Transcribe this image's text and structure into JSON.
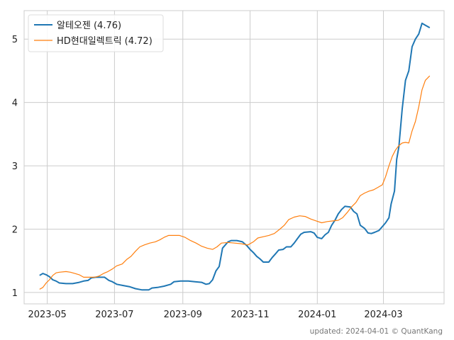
{
  "chart_data": {
    "type": "line",
    "x_type": "date",
    "xlim": [
      "2023-04-10",
      "2024-04-25"
    ],
    "ylim": [
      0.82,
      5.45
    ],
    "grid": true,
    "legend_position": "top-left",
    "x_ticks": [
      {
        "value": "2023-05-01",
        "label": "2023-05"
      },
      {
        "value": "2023-07-01",
        "label": "2023-07"
      },
      {
        "value": "2023-09-01",
        "label": "2023-09"
      },
      {
        "value": "2023-11-01",
        "label": "2023-11"
      },
      {
        "value": "2024-01-01",
        "label": "2024-01"
      },
      {
        "value": "2024-03-01",
        "label": "2024-03"
      }
    ],
    "y_ticks": [
      1,
      2,
      3,
      4,
      5
    ],
    "series": [
      {
        "name": "알테오젠 (4.76)",
        "color": "#1f77b4",
        "points": [
          [
            "2023-04-24",
            1.27
          ],
          [
            "2023-04-27",
            1.3
          ],
          [
            "2023-04-30",
            1.28
          ],
          [
            "2023-05-03",
            1.25
          ],
          [
            "2023-05-06",
            1.2
          ],
          [
            "2023-05-09",
            1.18
          ],
          [
            "2023-05-12",
            1.15
          ],
          [
            "2023-05-18",
            1.14
          ],
          [
            "2023-05-24",
            1.14
          ],
          [
            "2023-05-30",
            1.16
          ],
          [
            "2023-06-03",
            1.18
          ],
          [
            "2023-06-07",
            1.19
          ],
          [
            "2023-06-10",
            1.23
          ],
          [
            "2023-06-14",
            1.24
          ],
          [
            "2023-06-19",
            1.24
          ],
          [
            "2023-06-22",
            1.24
          ],
          [
            "2023-06-26",
            1.19
          ],
          [
            "2023-06-29",
            1.17
          ],
          [
            "2023-07-03",
            1.13
          ],
          [
            "2023-07-09",
            1.11
          ],
          [
            "2023-07-15",
            1.09
          ],
          [
            "2023-07-20",
            1.06
          ],
          [
            "2023-07-26",
            1.04
          ],
          [
            "2023-08-01",
            1.04
          ],
          [
            "2023-08-04",
            1.07
          ],
          [
            "2023-08-09",
            1.08
          ],
          [
            "2023-08-15",
            1.1
          ],
          [
            "2023-08-21",
            1.13
          ],
          [
            "2023-08-24",
            1.17
          ],
          [
            "2023-08-30",
            1.18
          ],
          [
            "2023-09-06",
            1.18
          ],
          [
            "2023-09-12",
            1.17
          ],
          [
            "2023-09-18",
            1.16
          ],
          [
            "2023-09-22",
            1.13
          ],
          [
            "2023-09-25",
            1.14
          ],
          [
            "2023-09-28",
            1.2
          ],
          [
            "2023-10-01",
            1.34
          ],
          [
            "2023-10-04",
            1.41
          ],
          [
            "2023-10-07",
            1.7
          ],
          [
            "2023-10-12",
            1.8
          ],
          [
            "2023-10-15",
            1.82
          ],
          [
            "2023-10-20",
            1.82
          ],
          [
            "2023-10-25",
            1.8
          ],
          [
            "2023-10-29",
            1.74
          ],
          [
            "2023-11-01",
            1.68
          ],
          [
            "2023-11-04",
            1.63
          ],
          [
            "2023-11-07",
            1.57
          ],
          [
            "2023-11-10",
            1.53
          ],
          [
            "2023-11-13",
            1.48
          ],
          [
            "2023-11-18",
            1.48
          ],
          [
            "2023-11-21",
            1.55
          ],
          [
            "2023-11-24",
            1.61
          ],
          [
            "2023-11-27",
            1.67
          ],
          [
            "2023-12-01",
            1.68
          ],
          [
            "2023-12-04",
            1.72
          ],
          [
            "2023-12-08",
            1.72
          ],
          [
            "2023-12-11",
            1.78
          ],
          [
            "2023-12-14",
            1.85
          ],
          [
            "2023-12-17",
            1.92
          ],
          [
            "2023-12-20",
            1.95
          ],
          [
            "2023-12-26",
            1.96
          ],
          [
            "2023-12-29",
            1.94
          ],
          [
            "2024-01-01",
            1.87
          ],
          [
            "2024-01-05",
            1.85
          ],
          [
            "2024-01-08",
            1.91
          ],
          [
            "2024-01-11",
            1.95
          ],
          [
            "2024-01-14",
            2.06
          ],
          [
            "2024-01-17",
            2.14
          ],
          [
            "2024-01-20",
            2.24
          ],
          [
            "2024-01-23",
            2.31
          ],
          [
            "2024-01-26",
            2.36
          ],
          [
            "2024-01-31",
            2.35
          ],
          [
            "2024-02-03",
            2.28
          ],
          [
            "2024-02-06",
            2.24
          ],
          [
            "2024-02-09",
            2.06
          ],
          [
            "2024-02-13",
            2.01
          ],
          [
            "2024-02-16",
            1.94
          ],
          [
            "2024-02-19",
            1.93
          ],
          [
            "2024-02-22",
            1.95
          ],
          [
            "2024-02-26",
            1.98
          ],
          [
            "2024-02-29",
            2.04
          ],
          [
            "2024-03-03",
            2.1
          ],
          [
            "2024-03-06",
            2.18
          ],
          [
            "2024-03-08",
            2.4
          ],
          [
            "2024-03-11",
            2.6
          ],
          [
            "2024-03-13",
            3.1
          ],
          [
            "2024-03-15",
            3.3
          ],
          [
            "2024-03-18",
            3.9
          ],
          [
            "2024-03-21",
            4.35
          ],
          [
            "2024-03-24",
            4.5
          ],
          [
            "2024-03-27",
            4.88
          ],
          [
            "2024-03-30",
            5.0
          ],
          [
            "2024-04-02",
            5.08
          ],
          [
            "2024-04-05",
            5.25
          ],
          [
            "2024-04-08",
            5.22
          ],
          [
            "2024-04-12",
            5.18
          ]
        ]
      },
      {
        "name": "HD현대일렉트릭 (4.72)",
        "color": "#ff7f0e",
        "points": [
          [
            "2023-04-24",
            1.05
          ],
          [
            "2023-04-27",
            1.08
          ],
          [
            "2023-04-30",
            1.15
          ],
          [
            "2023-05-03",
            1.2
          ],
          [
            "2023-05-06",
            1.27
          ],
          [
            "2023-05-09",
            1.31
          ],
          [
            "2023-05-12",
            1.32
          ],
          [
            "2023-05-18",
            1.33
          ],
          [
            "2023-05-22",
            1.32
          ],
          [
            "2023-05-26",
            1.3
          ],
          [
            "2023-05-30",
            1.28
          ],
          [
            "2023-06-03",
            1.24
          ],
          [
            "2023-06-08",
            1.24
          ],
          [
            "2023-06-13",
            1.24
          ],
          [
            "2023-06-17",
            1.26
          ],
          [
            "2023-06-21",
            1.3
          ],
          [
            "2023-06-25",
            1.33
          ],
          [
            "2023-06-29",
            1.37
          ],
          [
            "2023-07-03",
            1.42
          ],
          [
            "2023-07-08",
            1.45
          ],
          [
            "2023-07-12",
            1.52
          ],
          [
            "2023-07-16",
            1.57
          ],
          [
            "2023-07-20",
            1.65
          ],
          [
            "2023-07-24",
            1.72
          ],
          [
            "2023-07-28",
            1.75
          ],
          [
            "2023-08-02",
            1.78
          ],
          [
            "2023-08-07",
            1.8
          ],
          [
            "2023-08-11",
            1.83
          ],
          [
            "2023-08-15",
            1.87
          ],
          [
            "2023-08-19",
            1.9
          ],
          [
            "2023-08-24",
            1.9
          ],
          [
            "2023-08-29",
            1.9
          ],
          [
            "2023-09-03",
            1.87
          ],
          [
            "2023-09-08",
            1.82
          ],
          [
            "2023-09-13",
            1.78
          ],
          [
            "2023-09-18",
            1.73
          ],
          [
            "2023-09-23",
            1.7
          ],
          [
            "2023-09-28",
            1.68
          ],
          [
            "2023-10-02",
            1.72
          ],
          [
            "2023-10-06",
            1.78
          ],
          [
            "2023-10-12",
            1.79
          ],
          [
            "2023-10-18",
            1.78
          ],
          [
            "2023-10-24",
            1.77
          ],
          [
            "2023-10-30",
            1.75
          ],
          [
            "2023-11-04",
            1.8
          ],
          [
            "2023-11-08",
            1.86
          ],
          [
            "2023-11-13",
            1.88
          ],
          [
            "2023-11-18",
            1.9
          ],
          [
            "2023-11-23",
            1.93
          ],
          [
            "2023-11-28",
            2.0
          ],
          [
            "2023-12-02",
            2.06
          ],
          [
            "2023-12-06",
            2.15
          ],
          [
            "2023-12-11",
            2.19
          ],
          [
            "2023-12-16",
            2.21
          ],
          [
            "2023-12-21",
            2.2
          ],
          [
            "2023-12-26",
            2.16
          ],
          [
            "2023-12-31",
            2.13
          ],
          [
            "2024-01-05",
            2.1
          ],
          [
            "2024-01-10",
            2.12
          ],
          [
            "2024-01-15",
            2.13
          ],
          [
            "2024-01-20",
            2.14
          ],
          [
            "2024-01-24",
            2.18
          ],
          [
            "2024-01-28",
            2.26
          ],
          [
            "2024-02-01",
            2.35
          ],
          [
            "2024-02-05",
            2.42
          ],
          [
            "2024-02-09",
            2.53
          ],
          [
            "2024-02-13",
            2.57
          ],
          [
            "2024-02-17",
            2.6
          ],
          [
            "2024-02-21",
            2.62
          ],
          [
            "2024-02-25",
            2.66
          ],
          [
            "2024-02-29",
            2.7
          ],
          [
            "2024-03-03",
            2.83
          ],
          [
            "2024-03-06",
            3.0
          ],
          [
            "2024-03-09",
            3.15
          ],
          [
            "2024-03-12",
            3.25
          ],
          [
            "2024-03-15",
            3.32
          ],
          [
            "2024-03-18",
            3.36
          ],
          [
            "2024-03-21",
            3.37
          ],
          [
            "2024-03-24",
            3.36
          ],
          [
            "2024-03-27",
            3.55
          ],
          [
            "2024-03-30",
            3.7
          ],
          [
            "2024-04-02",
            3.93
          ],
          [
            "2024-04-05",
            4.2
          ],
          [
            "2024-04-08",
            4.35
          ],
          [
            "2024-04-12",
            4.42
          ]
        ]
      }
    ]
  },
  "footer": "updated: 2024-04-01 © QuantKang"
}
